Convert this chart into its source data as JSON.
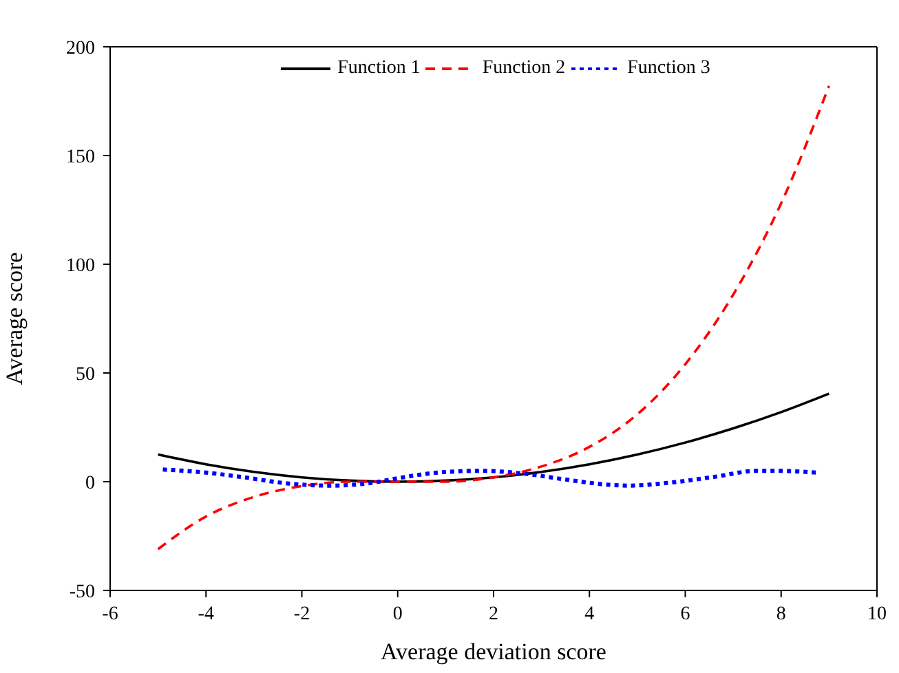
{
  "chart_data": {
    "type": "line",
    "xlabel": "Average deviation score",
    "ylabel": "Average score",
    "xlim": [
      -6,
      10
    ],
    "xticks": [
      -6,
      -4,
      -2,
      0,
      2,
      4,
      6,
      8,
      10
    ],
    "ylim": [
      -50,
      200
    ],
    "yticks": [
      -50,
      0,
      50,
      100,
      150,
      200
    ],
    "legend": "top",
    "marker": "none",
    "series": [
      {
        "name": "Function 1",
        "color": "#000000",
        "line_style": "solid",
        "x": [
          -5,
          -4,
          -3,
          -2,
          -1,
          0,
          1,
          2,
          3,
          4,
          5,
          6,
          7,
          8,
          9
        ],
        "values": [
          12.5,
          8,
          4.5,
          2,
          0.5,
          0,
          0.5,
          2,
          4.5,
          8,
          12.5,
          18,
          24.5,
          32,
          40.5
        ]
      },
      {
        "name": "Function 2",
        "color": "#ff0000",
        "line_style": "dashed",
        "x": [
          -5,
          -4,
          -3,
          -2,
          -1,
          0,
          1,
          2,
          3,
          4,
          5,
          6,
          7,
          8,
          9
        ],
        "values": [
          -31,
          -16,
          -7,
          -2,
          0,
          0,
          0,
          2,
          7,
          16,
          31,
          54,
          86,
          128,
          182
        ]
      },
      {
        "name": "Function 3",
        "color": "#0000ff",
        "line_style": "dotted",
        "x": [
          -4.9,
          -4,
          -3.2,
          -2.3,
          -1.4,
          -0.5,
          0,
          0.8,
          1.7,
          2.6,
          3.5,
          4.4,
          4.8,
          5.7,
          6.6,
          7.5,
          7.9,
          8.8
        ],
        "values": [
          5.6,
          4.2,
          2,
          -0.8,
          -1.8,
          -0.4,
          1.6,
          4.1,
          5,
          3.8,
          1,
          -1.4,
          -1.8,
          -0.4,
          2.2,
          5,
          5,
          4.1
        ]
      }
    ]
  }
}
